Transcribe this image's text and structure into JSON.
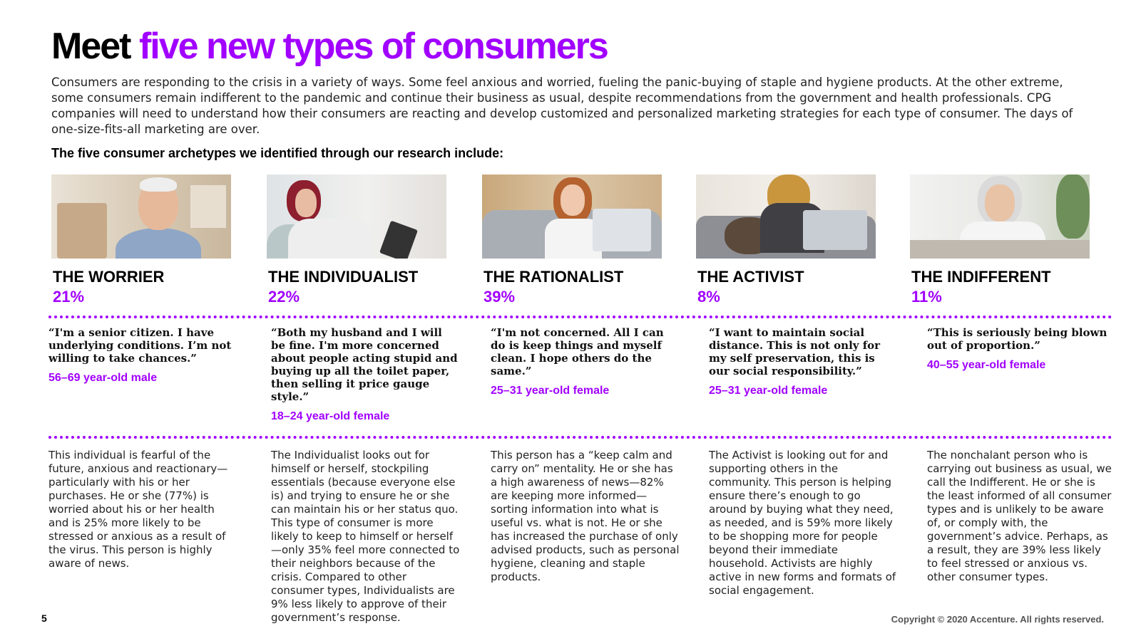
{
  "header": {
    "title_lead": "Meet",
    "title_accent": "five new types of consumers",
    "intro": "Consumers are responding to the crisis in a variety of ways. Some feel anxious and worried, fueling the panic-buying of staple and hygiene products. At the other extreme, some consumers remain indifferent to the pandemic and continue their business as usual, despite recommendations from the government and health professionals. CPG companies will need to understand how their consumers are reacting and develop customized and personalized marketing strategies for each type of consumer. The days of one-size-fits-all marketing are over.",
    "subhead": "The five consumer archetypes we identified through our research include:"
  },
  "archetypes": [
    {
      "name": "THE WORRIER",
      "percent": "21%",
      "quote": "“I'm a senior citizen. I have underlying conditions. I’m not willing to take chances.”",
      "demographic": "56–69 year-old male",
      "description": "This individual is fearful of the future, anxious and reactionary—particularly with his or her purchases. He or she (77%) is worried about his or her health and is 25% more likely to be stressed or anxious as a result of the virus. This person is highly aware of news."
    },
    {
      "name": "THE INDIVIDUALIST",
      "percent": "22%",
      "quote": "“Both my husband and I will be fine. I'm more concerned about people acting stupid and buying up all the toilet paper, then selling it price gauge style.”",
      "demographic": "18–24 year-old female",
      "description": "The Individualist looks out for himself or herself, stockpiling essentials (because everyone else is) and trying to ensure he or she can maintain his or her status quo. This type of consumer is more likely to keep to himself or herself—only 35% feel more connected to their neighbors because of the crisis. Compared to other consumer types, Individualists are 9% less likely to approve of their government’s response."
    },
    {
      "name": "THE RATIONALIST",
      "percent": "39%",
      "quote": "“I'm not concerned. All I can do is keep things and myself clean. I hope others do the same.”",
      "demographic": "25–31 year-old female",
      "description": "This person has a “keep calm and carry on” mentality. He or she has a high awareness of news—82% are keeping more informed—sorting information into what is useful vs. what is not. He or she has increased the purchase of only advised products, such as personal hygiene, cleaning and staple products."
    },
    {
      "name": "THE ACTIVIST",
      "percent": "8%",
      "quote": "“I want to maintain social distance. This is not only for my self preservation, this is our social responsibility.”",
      "demographic": "25–31 year-old female",
      "description": "The Activist is looking out for and supporting others in the community. This person is helping ensure there’s enough to go around by buying what they need, as needed, and is 59% more likely to be shopping more for people beyond their immediate household. Activists are highly active in new forms and formats of social engagement."
    },
    {
      "name": "THE INDIFFERENT",
      "percent": "11%",
      "quote": "“This is seriously being blown out of proportion.”",
      "demographic": "40–55 year-old female",
      "description": "The nonchalant person who is carrying out business as usual, we call the Indifferent. He or she is the least informed of all consumer types and is unlikely to be aware of, or comply with, the government’s advice. Perhaps, as a result, they are 39% less likely to feel stressed or anxious vs. other consumer types."
    }
  ],
  "footer": {
    "page_number": "5",
    "copyright": "Copyright © 2020 Accenture. All rights reserved."
  },
  "colors": {
    "accent": "#a100ff"
  }
}
